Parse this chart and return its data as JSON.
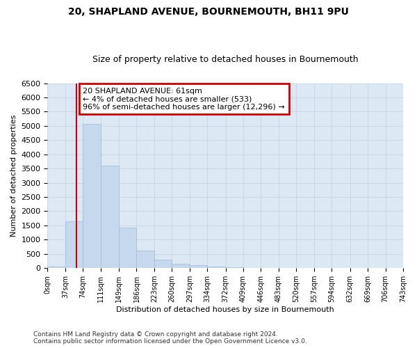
{
  "title": "20, SHAPLAND AVENUE, BOURNEMOUTH, BH11 9PU",
  "subtitle": "Size of property relative to detached houses in Bournemouth",
  "xlabel": "Distribution of detached houses by size in Bournemouth",
  "ylabel": "Number of detached properties",
  "footer_line1": "Contains HM Land Registry data © Crown copyright and database right 2024.",
  "footer_line2": "Contains public sector information licensed under the Open Government Licence v3.0.",
  "bin_edges": [
    0,
    37,
    74,
    111,
    149,
    186,
    223,
    260,
    297,
    334,
    372,
    409,
    446,
    483,
    520,
    557,
    594,
    632,
    669,
    706,
    743
  ],
  "bar_values": [
    55,
    1650,
    5080,
    3600,
    1430,
    620,
    300,
    150,
    100,
    50,
    30,
    15,
    5,
    0,
    0,
    0,
    0,
    0,
    0,
    0
  ],
  "bar_color": "#c6d9ec",
  "bar_edge_color": "#9fbcd4",
  "grid_color": "#c8d8e8",
  "bg_color": "#dce9f5",
  "annotation_text": "20 SHAPLAND AVENUE: 61sqm\n← 4% of detached houses are smaller (533)\n96% of semi-detached houses are larger (12,296) →",
  "annotation_box_facecolor": "#ffffff",
  "annotation_border_color": "#cc0000",
  "vline_x": 61,
  "vline_color": "#cc0000",
  "ylim": [
    0,
    6500
  ],
  "xlim_left": 0,
  "xlim_right": 743,
  "ann_x_data": 74,
  "ann_y_data": 6350
}
